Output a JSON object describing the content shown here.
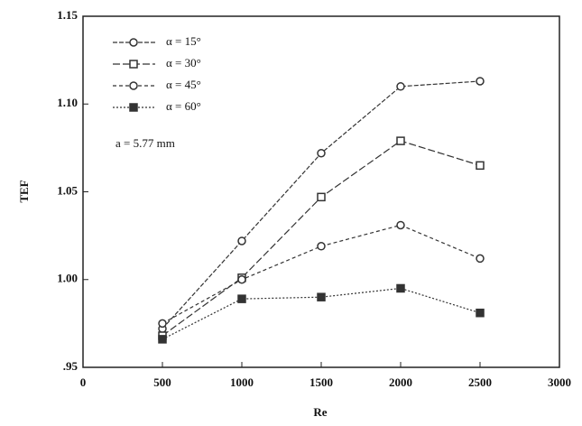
{
  "chart_data": {
    "type": "line",
    "xlabel": "Re",
    "ylabel": "TEF",
    "annotation": "a = 5.77 mm",
    "x": [
      500,
      1000,
      1500,
      2000,
      2500
    ],
    "series": [
      {
        "name": "α = 15°",
        "color": "#333333",
        "values": [
          0.972,
          1.022,
          1.072,
          1.11,
          1.113
        ]
      },
      {
        "name": "α = 30°",
        "color": "#333333",
        "values": [
          0.968,
          1.001,
          1.047,
          1.079,
          1.065
        ]
      },
      {
        "name": "α = 45°",
        "color": "#333333",
        "values": [
          0.975,
          1.0,
          1.019,
          1.031,
          1.012
        ]
      },
      {
        "name": "α = 60°",
        "color": "#333333",
        "values": [
          0.966,
          0.989,
          0.99,
          0.995,
          0.981
        ]
      }
    ],
    "xlim": [
      0,
      3000
    ],
    "xticks": [
      0,
      500,
      1000,
      1500,
      2000,
      2500,
      3000
    ],
    "ylim": [
      0.95,
      1.15
    ],
    "yticks": [
      {
        "value": 0.95,
        "label": ".95"
      },
      {
        "value": 1.0,
        "label": "1.00"
      },
      1.05,
      {
        "value": 1.1,
        "label": "1.10"
      },
      1.15
    ],
    "legend": "upper left"
  }
}
